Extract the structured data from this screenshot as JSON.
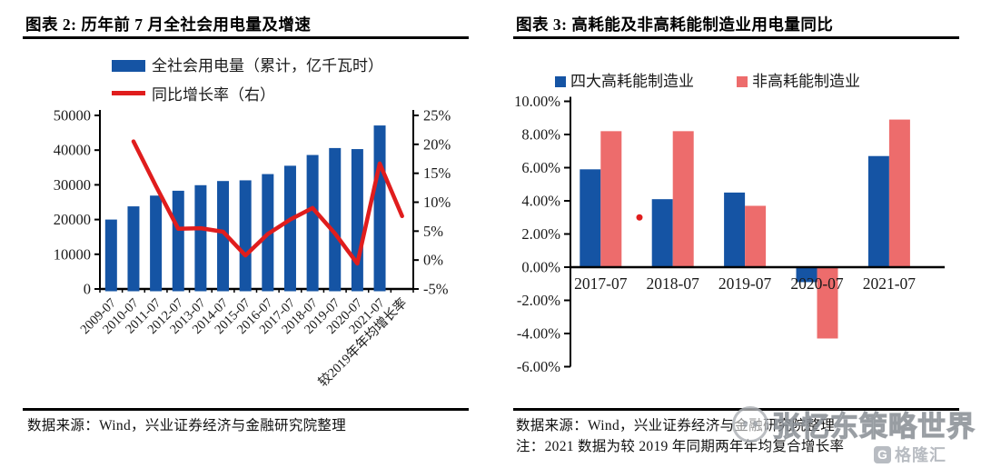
{
  "watermark": {
    "text": "张忆东策略世界",
    "logo_text": "格隆汇",
    "logo_letter": "G"
  },
  "panels": {
    "left": {
      "title": "图表 2: 历年前 7 月全社会用电量及增速",
      "source": "数据来源：Wind，兴业证券经济与金融研究院整理"
    },
    "right": {
      "title": "图表 3: 高耗能及非高耗能制造业用电量同比",
      "source": "数据来源：Wind，兴业证券经济与金融研究院整理",
      "note": "注：2021 数据为较 2019 年同期两年年均复合增长率"
    }
  },
  "colors": {
    "bar_blue": "#1554A4",
    "line_red": "#E01D1D",
    "bar_pink": "#ED6C6C",
    "axis": "#000000",
    "text": "#1a1a1a"
  },
  "chart_data": [
    {
      "type": "bar+line",
      "title": "历年前 7 月全社会用电量及增速",
      "categories": [
        "2009-07",
        "2010-07",
        "2011-07",
        "2012-07",
        "2013-07",
        "2014-07",
        "2015-07",
        "2016-07",
        "2017-07",
        "2018-07",
        "2019-07",
        "2020-07",
        "2021-07",
        "较2019年年均增长率"
      ],
      "series": [
        {
          "name": "全社会用电量（累计，亿千瓦时）",
          "type": "bar",
          "axis": "left",
          "color": "#1554A4",
          "values": [
            20000,
            23800,
            26900,
            28300,
            29900,
            31100,
            31300,
            33100,
            35500,
            38600,
            40600,
            40300,
            47100,
            null
          ]
        },
        {
          "name": "同比增长率（右）",
          "type": "line",
          "axis": "right",
          "color": "#E01D1D",
          "values": [
            null,
            20.5,
            12.8,
            5.4,
            5.5,
            4.9,
            0.8,
            4.5,
            7.0,
            9.0,
            4.6,
            -0.6,
            16.7,
            7.6
          ]
        }
      ],
      "left_axis": {
        "min": 0,
        "max": 50000,
        "step": 10000,
        "tick_labels": [
          "0",
          "10000",
          "20000",
          "30000",
          "40000",
          "50000"
        ]
      },
      "right_axis": {
        "min": -5,
        "max": 25,
        "step": 5,
        "tick_labels": [
          "-5%",
          "0%",
          "5%",
          "10%",
          "15%",
          "20%",
          "25%"
        ]
      },
      "grid": false,
      "legend_position": "top"
    },
    {
      "type": "bar",
      "title": "高耗能及非高耗能制造业用电量同比",
      "categories": [
        "2017-07",
        "2018-07",
        "2019-07",
        "2020-07",
        "2021-07"
      ],
      "series": [
        {
          "name": "四大高耗能制造业",
          "color": "#1554A4",
          "values": [
            5.9,
            4.1,
            4.5,
            -0.9,
            6.7
          ]
        },
        {
          "name": "非高耗能制造业",
          "color": "#ED6C6C",
          "values": [
            8.2,
            8.2,
            3.7,
            -4.3,
            8.9
          ]
        }
      ],
      "y_axis": {
        "min": -6,
        "max": 10,
        "step": 2,
        "tick_labels": [
          "-6.00%",
          "-4.00%",
          "-2.00%",
          "0.00%",
          "2.00%",
          "4.00%",
          "6.00%",
          "8.00%",
          "10.00%"
        ]
      },
      "stray_dot": {
        "x": 704,
        "value": 3.0,
        "color": "#E01D1D"
      },
      "grid": false,
      "legend_position": "top"
    }
  ]
}
